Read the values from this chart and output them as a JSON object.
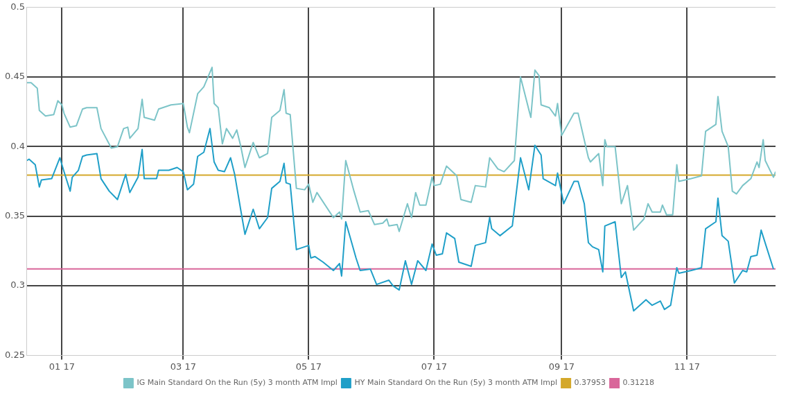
{
  "chart_data": {
    "type": "line",
    "xlim": [
      "2016-12-15",
      "2017-12-14"
    ],
    "xticks": [
      {
        "value": "2017-01-01",
        "label": "01 17"
      },
      {
        "value": "2017-03-01",
        "label": "03 17"
      },
      {
        "value": "2017-05-01",
        "label": "05 17"
      },
      {
        "value": "2017-07-01",
        "label": "07 17"
      },
      {
        "value": "2017-09-01",
        "label": "09 17"
      },
      {
        "value": "2017-11-01",
        "label": "11 17"
      }
    ],
    "ylim": [
      0.25,
      0.5
    ],
    "yticks": [
      0.25,
      0.3,
      0.35,
      0.4,
      0.45,
      0.5
    ],
    "grid": true,
    "legend": "bottom",
    "marker": "none",
    "line_style": "solid",
    "series": [
      {
        "name": "IG Main Standard On the Run (5y) 3 month ATM Impl",
        "color": "#7cc4c8",
        "x": [
          "2016-12-15",
          "2016-12-17",
          "2016-12-20",
          "2016-12-21",
          "2016-12-24",
          "2016-12-28",
          "2016-12-30",
          "2017-01-01",
          "2017-01-02",
          "2017-01-05",
          "2017-01-08",
          "2017-01-11",
          "2017-01-13",
          "2017-01-18",
          "2017-01-20",
          "2017-01-25",
          "2017-01-28",
          "2017-01-31",
          "2017-02-02",
          "2017-02-03",
          "2017-02-07",
          "2017-02-09",
          "2017-02-10",
          "2017-02-15",
          "2017-02-17",
          "2017-02-23",
          "2017-03-01",
          "2017-03-03",
          "2017-03-04",
          "2017-03-08",
          "2017-03-11",
          "2017-03-13",
          "2017-03-15",
          "2017-03-16",
          "2017-03-18",
          "2017-03-20",
          "2017-03-22",
          "2017-03-25",
          "2017-03-27",
          "2017-03-29",
          "2017-03-31",
          "2017-04-04",
          "2017-04-07",
          "2017-04-11",
          "2017-04-13",
          "2017-04-17",
          "2017-04-19",
          "2017-04-20",
          "2017-04-22",
          "2017-04-25",
          "2017-04-29",
          "2017-05-01",
          "2017-05-03",
          "2017-05-05",
          "2017-05-13",
          "2017-05-16",
          "2017-05-17",
          "2017-05-19",
          "2017-05-23",
          "2017-05-26",
          "2017-05-30",
          "2017-06-02",
          "2017-06-06",
          "2017-06-08",
          "2017-06-09",
          "2017-06-13",
          "2017-06-14",
          "2017-06-18",
          "2017-06-20",
          "2017-06-22",
          "2017-06-24",
          "2017-06-27",
          "2017-06-30",
          "2017-07-01",
          "2017-07-04",
          "2017-07-07",
          "2017-07-12",
          "2017-07-14",
          "2017-07-19",
          "2017-07-21",
          "2017-07-26",
          "2017-07-28",
          "2017-08-01",
          "2017-08-04",
          "2017-08-09",
          "2017-08-12",
          "2017-08-17",
          "2017-08-19",
          "2017-08-21",
          "2017-08-22",
          "2017-08-26",
          "2017-08-29",
          "2017-08-30",
          "2017-09-01",
          "2017-09-07",
          "2017-09-09",
          "2017-09-14",
          "2017-09-15",
          "2017-09-19",
          "2017-09-21",
          "2017-09-22",
          "2017-09-23",
          "2017-09-27",
          "2017-09-30",
          "2017-10-03",
          "2017-10-06",
          "2017-10-11",
          "2017-10-13",
          "2017-10-15",
          "2017-10-19",
          "2017-10-20",
          "2017-10-22",
          "2017-10-25",
          "2017-10-27",
          "2017-10-28",
          "2017-11-03",
          "2017-11-08",
          "2017-11-10",
          "2017-11-15",
          "2017-11-16",
          "2017-11-18",
          "2017-11-21",
          "2017-11-23",
          "2017-11-25",
          "2017-11-28",
          "2017-12-02",
          "2017-12-05",
          "2017-12-06",
          "2017-12-08",
          "2017-12-09",
          "2017-12-13",
          "2017-12-14"
        ],
        "values": [
          0.446,
          0.446,
          0.442,
          0.426,
          0.422,
          0.423,
          0.433,
          0.43,
          0.424,
          0.414,
          0.415,
          0.427,
          0.428,
          0.428,
          0.413,
          0.399,
          0.4,
          0.413,
          0.414,
          0.406,
          0.413,
          0.434,
          0.421,
          0.419,
          0.427,
          0.43,
          0.431,
          0.414,
          0.41,
          0.438,
          0.443,
          0.45,
          0.457,
          0.431,
          0.428,
          0.402,
          0.413,
          0.406,
          0.412,
          0.4,
          0.385,
          0.403,
          0.392,
          0.395,
          0.421,
          0.426,
          0.441,
          0.424,
          0.423,
          0.37,
          0.369,
          0.373,
          0.36,
          0.367,
          0.349,
          0.353,
          0.348,
          0.39,
          0.368,
          0.353,
          0.354,
          0.344,
          0.345,
          0.348,
          0.343,
          0.344,
          0.339,
          0.359,
          0.349,
          0.367,
          0.358,
          0.358,
          0.378,
          0.372,
          0.373,
          0.386,
          0.379,
          0.362,
          0.36,
          0.372,
          0.371,
          0.392,
          0.384,
          0.382,
          0.39,
          0.45,
          0.421,
          0.455,
          0.451,
          0.43,
          0.428,
          0.422,
          0.431,
          0.408,
          0.424,
          0.424,
          0.392,
          0.389,
          0.395,
          0.372,
          0.405,
          0.4,
          0.4,
          0.359,
          0.372,
          0.34,
          0.348,
          0.359,
          0.353,
          0.353,
          0.358,
          0.351,
          0.351,
          0.387,
          0.375,
          0.377,
          0.379,
          0.411,
          0.416,
          0.436,
          0.411,
          0.4,
          0.368,
          0.366,
          0.372,
          0.377,
          0.389,
          0.385,
          0.405,
          0.39,
          0.378,
          0.382
        ]
      },
      {
        "name": "HY Main Standard On the Run (5y) 3 month ATM Impl",
        "color": "#1f9fc8",
        "x": [
          "2016-12-15",
          "2016-12-16",
          "2016-12-19",
          "2016-12-21",
          "2016-12-22",
          "2016-12-27",
          "2016-12-31",
          "2017-01-02",
          "2017-01-05",
          "2017-01-06",
          "2017-01-09",
          "2017-01-11",
          "2017-01-13",
          "2017-01-18",
          "2017-01-20",
          "2017-01-24",
          "2017-01-28",
          "2017-02-01",
          "2017-02-03",
          "2017-02-07",
          "2017-02-09",
          "2017-02-10",
          "2017-02-16",
          "2017-02-17",
          "2017-02-22",
          "2017-02-26",
          "2017-03-01",
          "2017-03-03",
          "2017-03-06",
          "2017-03-08",
          "2017-03-11",
          "2017-03-14",
          "2017-03-16",
          "2017-03-18",
          "2017-03-21",
          "2017-03-24",
          "2017-03-26",
          "2017-03-29",
          "2017-03-31",
          "2017-04-04",
          "2017-04-07",
          "2017-04-11",
          "2017-04-13",
          "2017-04-17",
          "2017-04-19",
          "2017-04-20",
          "2017-04-22",
          "2017-04-25",
          "2017-05-01",
          "2017-05-02",
          "2017-05-04",
          "2017-05-08",
          "2017-05-13",
          "2017-05-16",
          "2017-05-17",
          "2017-05-19",
          "2017-05-24",
          "2017-05-26",
          "2017-05-31",
          "2017-06-03",
          "2017-06-09",
          "2017-06-11",
          "2017-06-14",
          "2017-06-17",
          "2017-06-20",
          "2017-06-23",
          "2017-06-27",
          "2017-06-30",
          "2017-07-02",
          "2017-07-05",
          "2017-07-07",
          "2017-07-11",
          "2017-07-13",
          "2017-07-19",
          "2017-07-21",
          "2017-07-26",
          "2017-07-28",
          "2017-07-29",
          "2017-08-02",
          "2017-08-08",
          "2017-08-12",
          "2017-08-16",
          "2017-08-19",
          "2017-08-22",
          "2017-08-23",
          "2017-08-29",
          "2017-08-30",
          "2017-09-02",
          "2017-09-07",
          "2017-09-09",
          "2017-09-12",
          "2017-09-14",
          "2017-09-16",
          "2017-09-19",
          "2017-09-21",
          "2017-09-22",
          "2017-09-27",
          "2017-09-30",
          "2017-10-02",
          "2017-10-06",
          "2017-10-12",
          "2017-10-15",
          "2017-10-19",
          "2017-10-21",
          "2017-10-24",
          "2017-10-27",
          "2017-10-28",
          "2017-11-03",
          "2017-11-08",
          "2017-11-10",
          "2017-11-15",
          "2017-11-16",
          "2017-11-18",
          "2017-11-21",
          "2017-11-24",
          "2017-11-28",
          "2017-11-30",
          "2017-12-02",
          "2017-12-05",
          "2017-12-07",
          "2017-12-13"
        ],
        "values": [
          0.39,
          0.391,
          0.387,
          0.371,
          0.376,
          0.377,
          0.392,
          0.382,
          0.368,
          0.378,
          0.383,
          0.393,
          0.394,
          0.395,
          0.377,
          0.368,
          0.362,
          0.38,
          0.367,
          0.378,
          0.398,
          0.377,
          0.377,
          0.383,
          0.383,
          0.385,
          0.382,
          0.369,
          0.373,
          0.393,
          0.396,
          0.413,
          0.389,
          0.383,
          0.382,
          0.392,
          0.38,
          0.354,
          0.337,
          0.355,
          0.341,
          0.349,
          0.37,
          0.375,
          0.388,
          0.374,
          0.373,
          0.326,
          0.329,
          0.32,
          0.321,
          0.317,
          0.311,
          0.316,
          0.307,
          0.346,
          0.32,
          0.311,
          0.312,
          0.301,
          0.304,
          0.3,
          0.297,
          0.318,
          0.301,
          0.318,
          0.311,
          0.33,
          0.322,
          0.323,
          0.338,
          0.334,
          0.317,
          0.314,
          0.329,
          0.331,
          0.349,
          0.341,
          0.336,
          0.343,
          0.392,
          0.369,
          0.401,
          0.394,
          0.377,
          0.372,
          0.381,
          0.359,
          0.375,
          0.375,
          0.359,
          0.331,
          0.328,
          0.326,
          0.31,
          0.343,
          0.346,
          0.306,
          0.31,
          0.282,
          0.29,
          0.286,
          0.289,
          0.283,
          0.286,
          0.313,
          0.309,
          0.311,
          0.313,
          0.341,
          0.346,
          0.363,
          0.336,
          0.332,
          0.302,
          0.311,
          0.31,
          0.321,
          0.322,
          0.34,
          0.312
        ]
      }
    ],
    "ref_lines": [
      {
        "axis": "y",
        "value": 0.37953,
        "label": "0.37953",
        "color": "#d4a82a"
      },
      {
        "axis": "y",
        "value": 0.31218,
        "label": "0.31218",
        "color": "#d9669a"
      }
    ]
  }
}
